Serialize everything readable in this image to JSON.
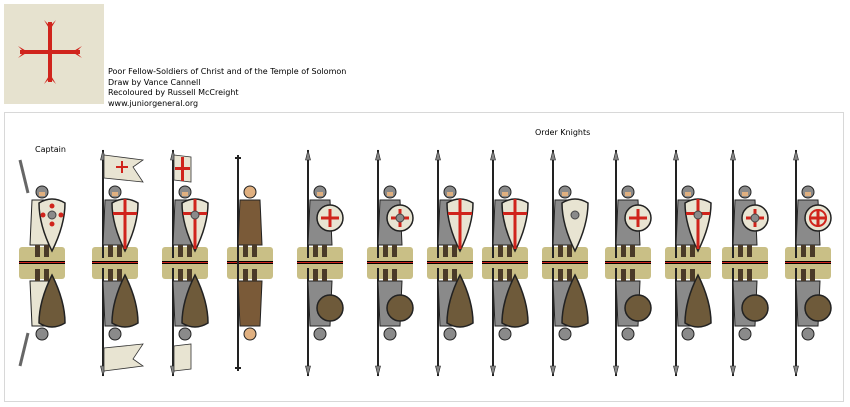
{
  "header": {
    "logo": "templar-cross-emblem",
    "lines": [
      "Poor Fellow-Soldiers of Christ and of the Temple of Solomon",
      "Draw by Vance Cannell",
      "Recoloured by Russell McCreight",
      "www.juniorgeneral.org"
    ]
  },
  "sheet": {
    "captain_label": "Captain",
    "group_label": "Order Knights"
  },
  "colors": {
    "cross_red": "#d0241c",
    "cloth_white": "#e8e4d2",
    "mail_grey": "#8a8a8a",
    "monk_brown": "#7a5a38",
    "grass": "#c9bf86",
    "shield_back": "#6e5a3a"
  },
  "figures": [
    {
      "type": "captain",
      "shield": "kite-boss-pattee"
    },
    {
      "type": "banner-swallowtail",
      "shield": "kite-cross"
    },
    {
      "type": "banner-square",
      "shield": "kite-boss-cross"
    },
    {
      "type": "monk",
      "shield": "none"
    },
    {
      "type": "spearman",
      "shield": "round-cross"
    },
    {
      "type": "spearman",
      "shield": "round-boss-cross"
    },
    {
      "type": "spearman",
      "shield": "kite-cross"
    },
    {
      "type": "spearman",
      "shield": "kite-cross"
    },
    {
      "type": "spearman",
      "shield": "kite-boss"
    },
    {
      "type": "spearman",
      "shield": "round-cross"
    },
    {
      "type": "spearman",
      "shield": "kite-boss-cross"
    },
    {
      "type": "spearman",
      "shield": "round-boss-cross"
    },
    {
      "type": "spearman",
      "shield": "round-ring-cross"
    }
  ]
}
